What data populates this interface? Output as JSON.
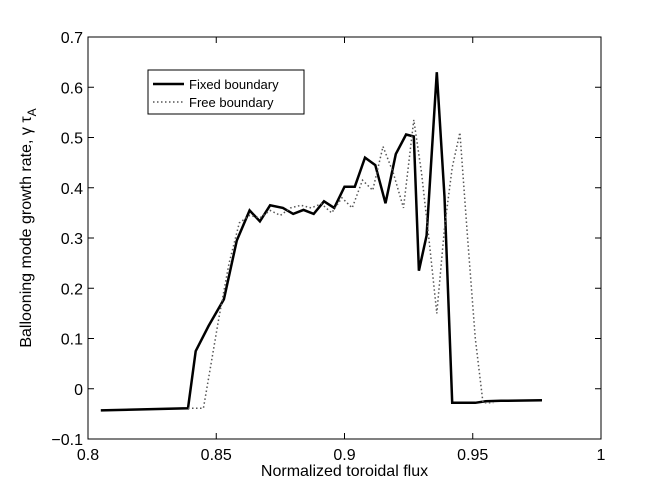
{
  "chart_data": {
    "type": "line",
    "title": "",
    "xlabel": "Normalized toroidal flux",
    "ylabel": {
      "main": "Ballooning mode growth rate, γ τ",
      "subscript": "A"
    },
    "xlim": [
      0.8,
      1.0
    ],
    "ylim": [
      -0.1,
      0.7
    ],
    "xticks": [
      0.8,
      0.85,
      0.9,
      0.95,
      1.0
    ],
    "xtick_labels": [
      "0.8",
      "0.85",
      "0.9",
      "0.95",
      "1"
    ],
    "yticks": [
      -0.1,
      0.0,
      0.1,
      0.2,
      0.3,
      0.4,
      0.5,
      0.6,
      0.7
    ],
    "ytick_labels": [
      "−0.1",
      "0",
      "0.1",
      "0.2",
      "0.3",
      "0.4",
      "0.5",
      "0.6",
      "0.7"
    ],
    "grid": false,
    "legend_position": "top-left",
    "series": [
      {
        "name": "Fixed boundary",
        "style": "solid",
        "color": "#000000",
        "x": [
          0.805,
          0.839,
          0.842,
          0.847,
          0.853,
          0.858,
          0.863,
          0.867,
          0.871,
          0.876,
          0.88,
          0.884,
          0.888,
          0.892,
          0.896,
          0.9,
          0.904,
          0.908,
          0.912,
          0.916,
          0.92,
          0.924,
          0.927,
          0.929,
          0.932,
          0.936,
          0.939,
          0.942,
          0.946,
          0.951,
          0.955,
          0.961,
          0.977
        ],
        "y": [
          -0.043,
          -0.039,
          0.075,
          0.125,
          0.178,
          0.295,
          0.355,
          0.333,
          0.365,
          0.36,
          0.348,
          0.356,
          0.348,
          0.373,
          0.36,
          0.402,
          0.402,
          0.46,
          0.445,
          0.369,
          0.467,
          0.506,
          0.502,
          0.235,
          0.305,
          0.63,
          0.382,
          -0.028,
          -0.028,
          -0.028,
          -0.025,
          -0.024,
          -0.023
        ]
      },
      {
        "name": "Free boundary",
        "style": "dotted",
        "color": "#555555",
        "x": [
          0.839,
          0.845,
          0.848,
          0.851,
          0.855,
          0.859,
          0.863,
          0.867,
          0.871,
          0.875,
          0.879,
          0.883,
          0.887,
          0.891,
          0.895,
          0.899,
          0.903,
          0.907,
          0.911,
          0.915,
          0.919,
          0.923,
          0.927,
          0.93,
          0.933,
          0.936,
          0.939,
          0.942,
          0.945,
          0.948,
          0.951,
          0.954,
          0.956,
          0.958
        ],
        "y": [
          -0.039,
          -0.039,
          0.05,
          0.14,
          0.25,
          0.33,
          0.345,
          0.34,
          0.355,
          0.345,
          0.36,
          0.365,
          0.36,
          0.368,
          0.35,
          0.38,
          0.36,
          0.415,
          0.395,
          0.482,
          0.43,
          0.36,
          0.535,
          0.43,
          0.295,
          0.15,
          0.32,
          0.44,
          0.51,
          0.3,
          0.1,
          -0.028,
          -0.028,
          -0.028
        ]
      }
    ]
  }
}
